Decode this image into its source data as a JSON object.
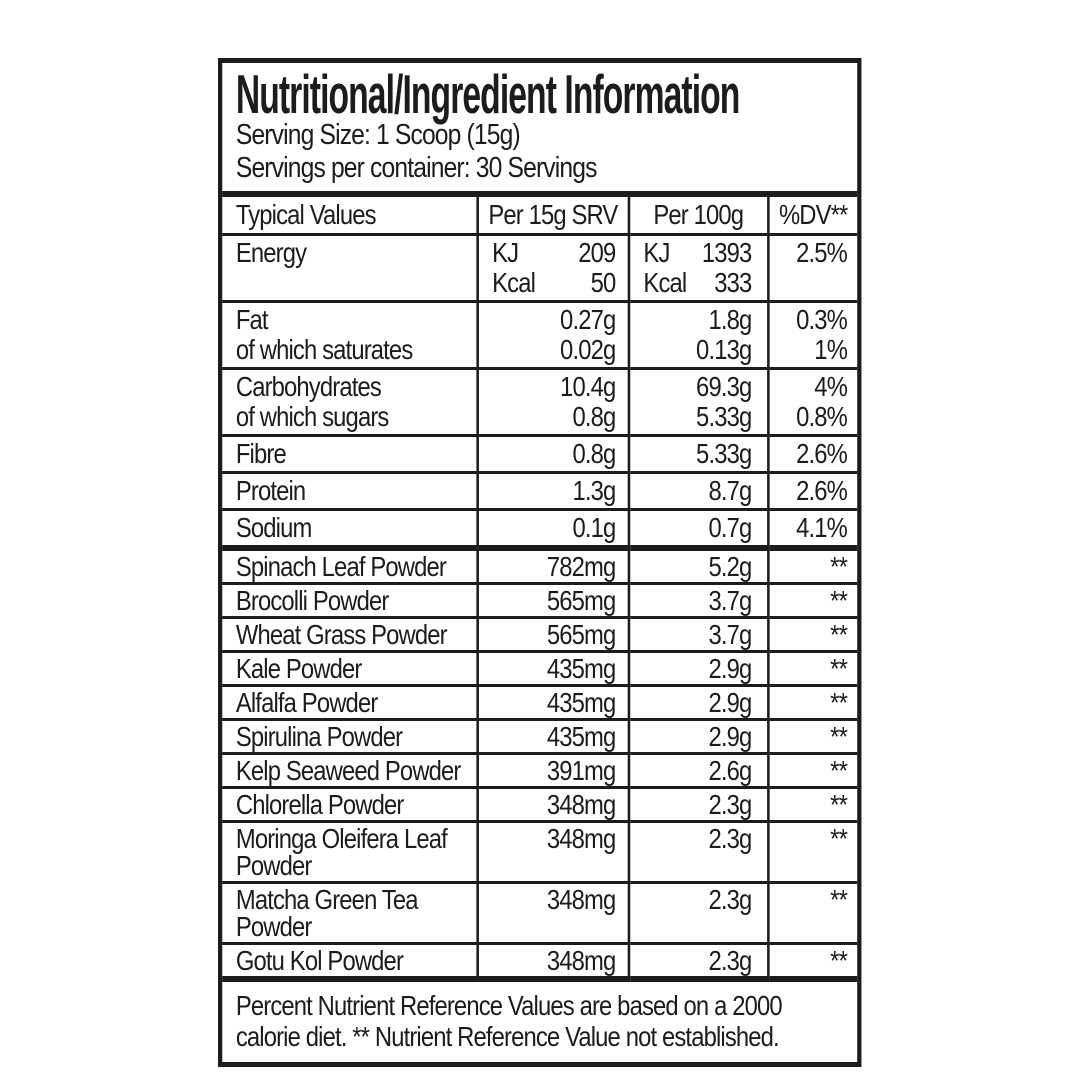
{
  "page": {
    "background": "#ffffff"
  },
  "label": {
    "text_color": "#1d1b1b",
    "border_color": "#1d1b1b",
    "title": "Nutritional/Ingredient Information",
    "serving_size": "Serving Size: 1 Scoop (15g)",
    "servings_per_container": "Servings per container: 30 Servings",
    "table": {
      "headers": [
        "Typical Values",
        "Per 15g SRV",
        "Per 100g",
        "%DV**"
      ],
      "nutrient_rows": [
        {
          "name_lines": [
            "Energy"
          ],
          "srv_lines": [
            {
              "label": "KJ",
              "value": "209"
            },
            {
              "label": "Kcal",
              "value": "50"
            }
          ],
          "per100_lines": [
            {
              "label": "KJ",
              "value": "1393"
            },
            {
              "label": "Kcal",
              "value": "333"
            }
          ],
          "dv_lines": [
            "2.5%"
          ]
        },
        {
          "name_lines": [
            "Fat",
            "of which saturates"
          ],
          "srv_lines": [
            {
              "value": "0.27g"
            },
            {
              "value": "0.02g"
            }
          ],
          "per100_lines": [
            {
              "value": "1.8g"
            },
            {
              "value": "0.13g"
            }
          ],
          "dv_lines": [
            "0.3%",
            "1%"
          ]
        },
        {
          "name_lines": [
            "Carbohydrates",
            "of which sugars"
          ],
          "srv_lines": [
            {
              "value": "10.4g"
            },
            {
              "value": "0.8g"
            }
          ],
          "per100_lines": [
            {
              "value": "69.3g"
            },
            {
              "value": "5.33g"
            }
          ],
          "dv_lines": [
            "4%",
            "0.8%"
          ]
        },
        {
          "name_lines": [
            "Fibre"
          ],
          "srv_lines": [
            {
              "value": "0.8g"
            }
          ],
          "per100_lines": [
            {
              "value": "5.33g"
            }
          ],
          "dv_lines": [
            "2.6%"
          ]
        },
        {
          "name_lines": [
            "Protein"
          ],
          "srv_lines": [
            {
              "value": "1.3g"
            }
          ],
          "per100_lines": [
            {
              "value": "8.7g"
            }
          ],
          "dv_lines": [
            "2.6%"
          ]
        },
        {
          "name_lines": [
            "Sodium"
          ],
          "srv_lines": [
            {
              "value": "0.1g"
            }
          ],
          "per100_lines": [
            {
              "value": "0.7g"
            }
          ],
          "dv_lines": [
            "4.1%"
          ]
        }
      ],
      "ingredient_rows": [
        {
          "name_lines": [
            "Spinach Leaf Powder"
          ],
          "srv": "782mg",
          "per100": "5.2g",
          "dv": "**"
        },
        {
          "name_lines": [
            "Brocolli Powder"
          ],
          "srv": "565mg",
          "per100": "3.7g",
          "dv": "**"
        },
        {
          "name_lines": [
            "Wheat Grass Powder"
          ],
          "srv": "565mg",
          "per100": "3.7g",
          "dv": "**"
        },
        {
          "name_lines": [
            "Kale Powder"
          ],
          "srv": "435mg",
          "per100": "2.9g",
          "dv": "**"
        },
        {
          "name_lines": [
            "Alfalfa Powder"
          ],
          "srv": "435mg",
          "per100": "2.9g",
          "dv": "**"
        },
        {
          "name_lines": [
            "Spirulina Powder"
          ],
          "srv": "435mg",
          "per100": "2.9g",
          "dv": "**"
        },
        {
          "name_lines": [
            "Kelp Seaweed Powder"
          ],
          "srv": "391mg",
          "per100": "2.6g",
          "dv": "**"
        },
        {
          "name_lines": [
            "Chlorella Powder"
          ],
          "srv": "348mg",
          "per100": "2.3g",
          "dv": "**"
        },
        {
          "name_lines": [
            "Moringa Oleifera Leaf",
            "Powder"
          ],
          "srv": "348mg",
          "per100": "2.3g",
          "dv": "**"
        },
        {
          "name_lines": [
            "Matcha Green Tea",
            "Powder"
          ],
          "srv": "348mg",
          "per100": "2.3g",
          "dv": "**"
        },
        {
          "name_lines": [
            "Gotu Kol Powder"
          ],
          "srv": "348mg",
          "per100": "2.3g",
          "dv": "**"
        }
      ]
    },
    "footnote": "Percent Nutrient Reference Values are based on a 2000 calorie diet. ** Nutrient Reference Value not established."
  }
}
